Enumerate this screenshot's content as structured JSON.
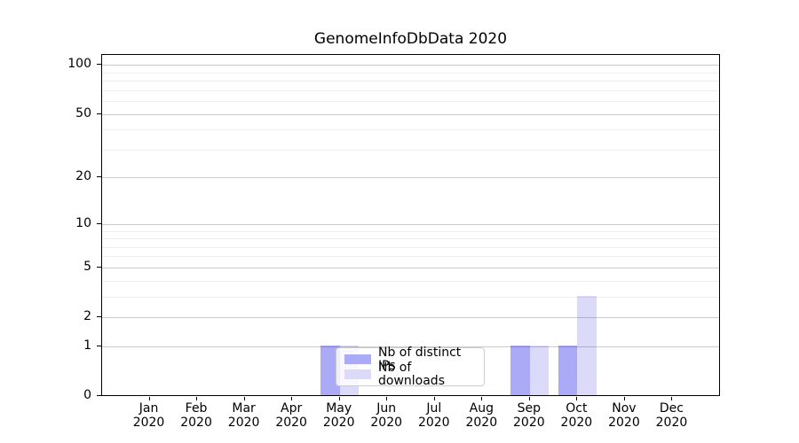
{
  "title": "GenomeInfoDbData 2020",
  "chart_data": {
    "type": "bar",
    "categories": [
      "Jan",
      "Feb",
      "Mar",
      "Apr",
      "May",
      "Jun",
      "Jul",
      "Aug",
      "Sep",
      "Oct",
      "Nov",
      "Dec"
    ],
    "year": "2020",
    "series": [
      {
        "name": "Nb of distinct IPs",
        "color": "#aaaaf7",
        "values": [
          0,
          0,
          0,
          0,
          1,
          0,
          0,
          0,
          1,
          1,
          0,
          0
        ]
      },
      {
        "name": "Nb of downloads",
        "color": "#dbdbf9",
        "values": [
          0,
          0,
          0,
          0,
          1,
          0,
          0,
          0,
          1,
          3,
          0,
          0
        ]
      }
    ],
    "yscale": "log1p",
    "ylim": [
      0,
      115
    ],
    "y_major_ticks": [
      0,
      1,
      2,
      5,
      10,
      20,
      50,
      100
    ],
    "y_minor_gridlines": [
      3,
      4,
      6,
      7,
      8,
      9,
      30,
      40,
      60,
      70,
      80,
      90
    ],
    "grid": true,
    "legend_position": "lower center-left inside plot"
  },
  "colors": {
    "distinct_ips": "#aaaaf7",
    "downloads": "#dbdbf9",
    "axis": "#000000",
    "grid_major": "#cccccc",
    "grid_minor": "#ededed",
    "legend_border": "#cccccc"
  }
}
